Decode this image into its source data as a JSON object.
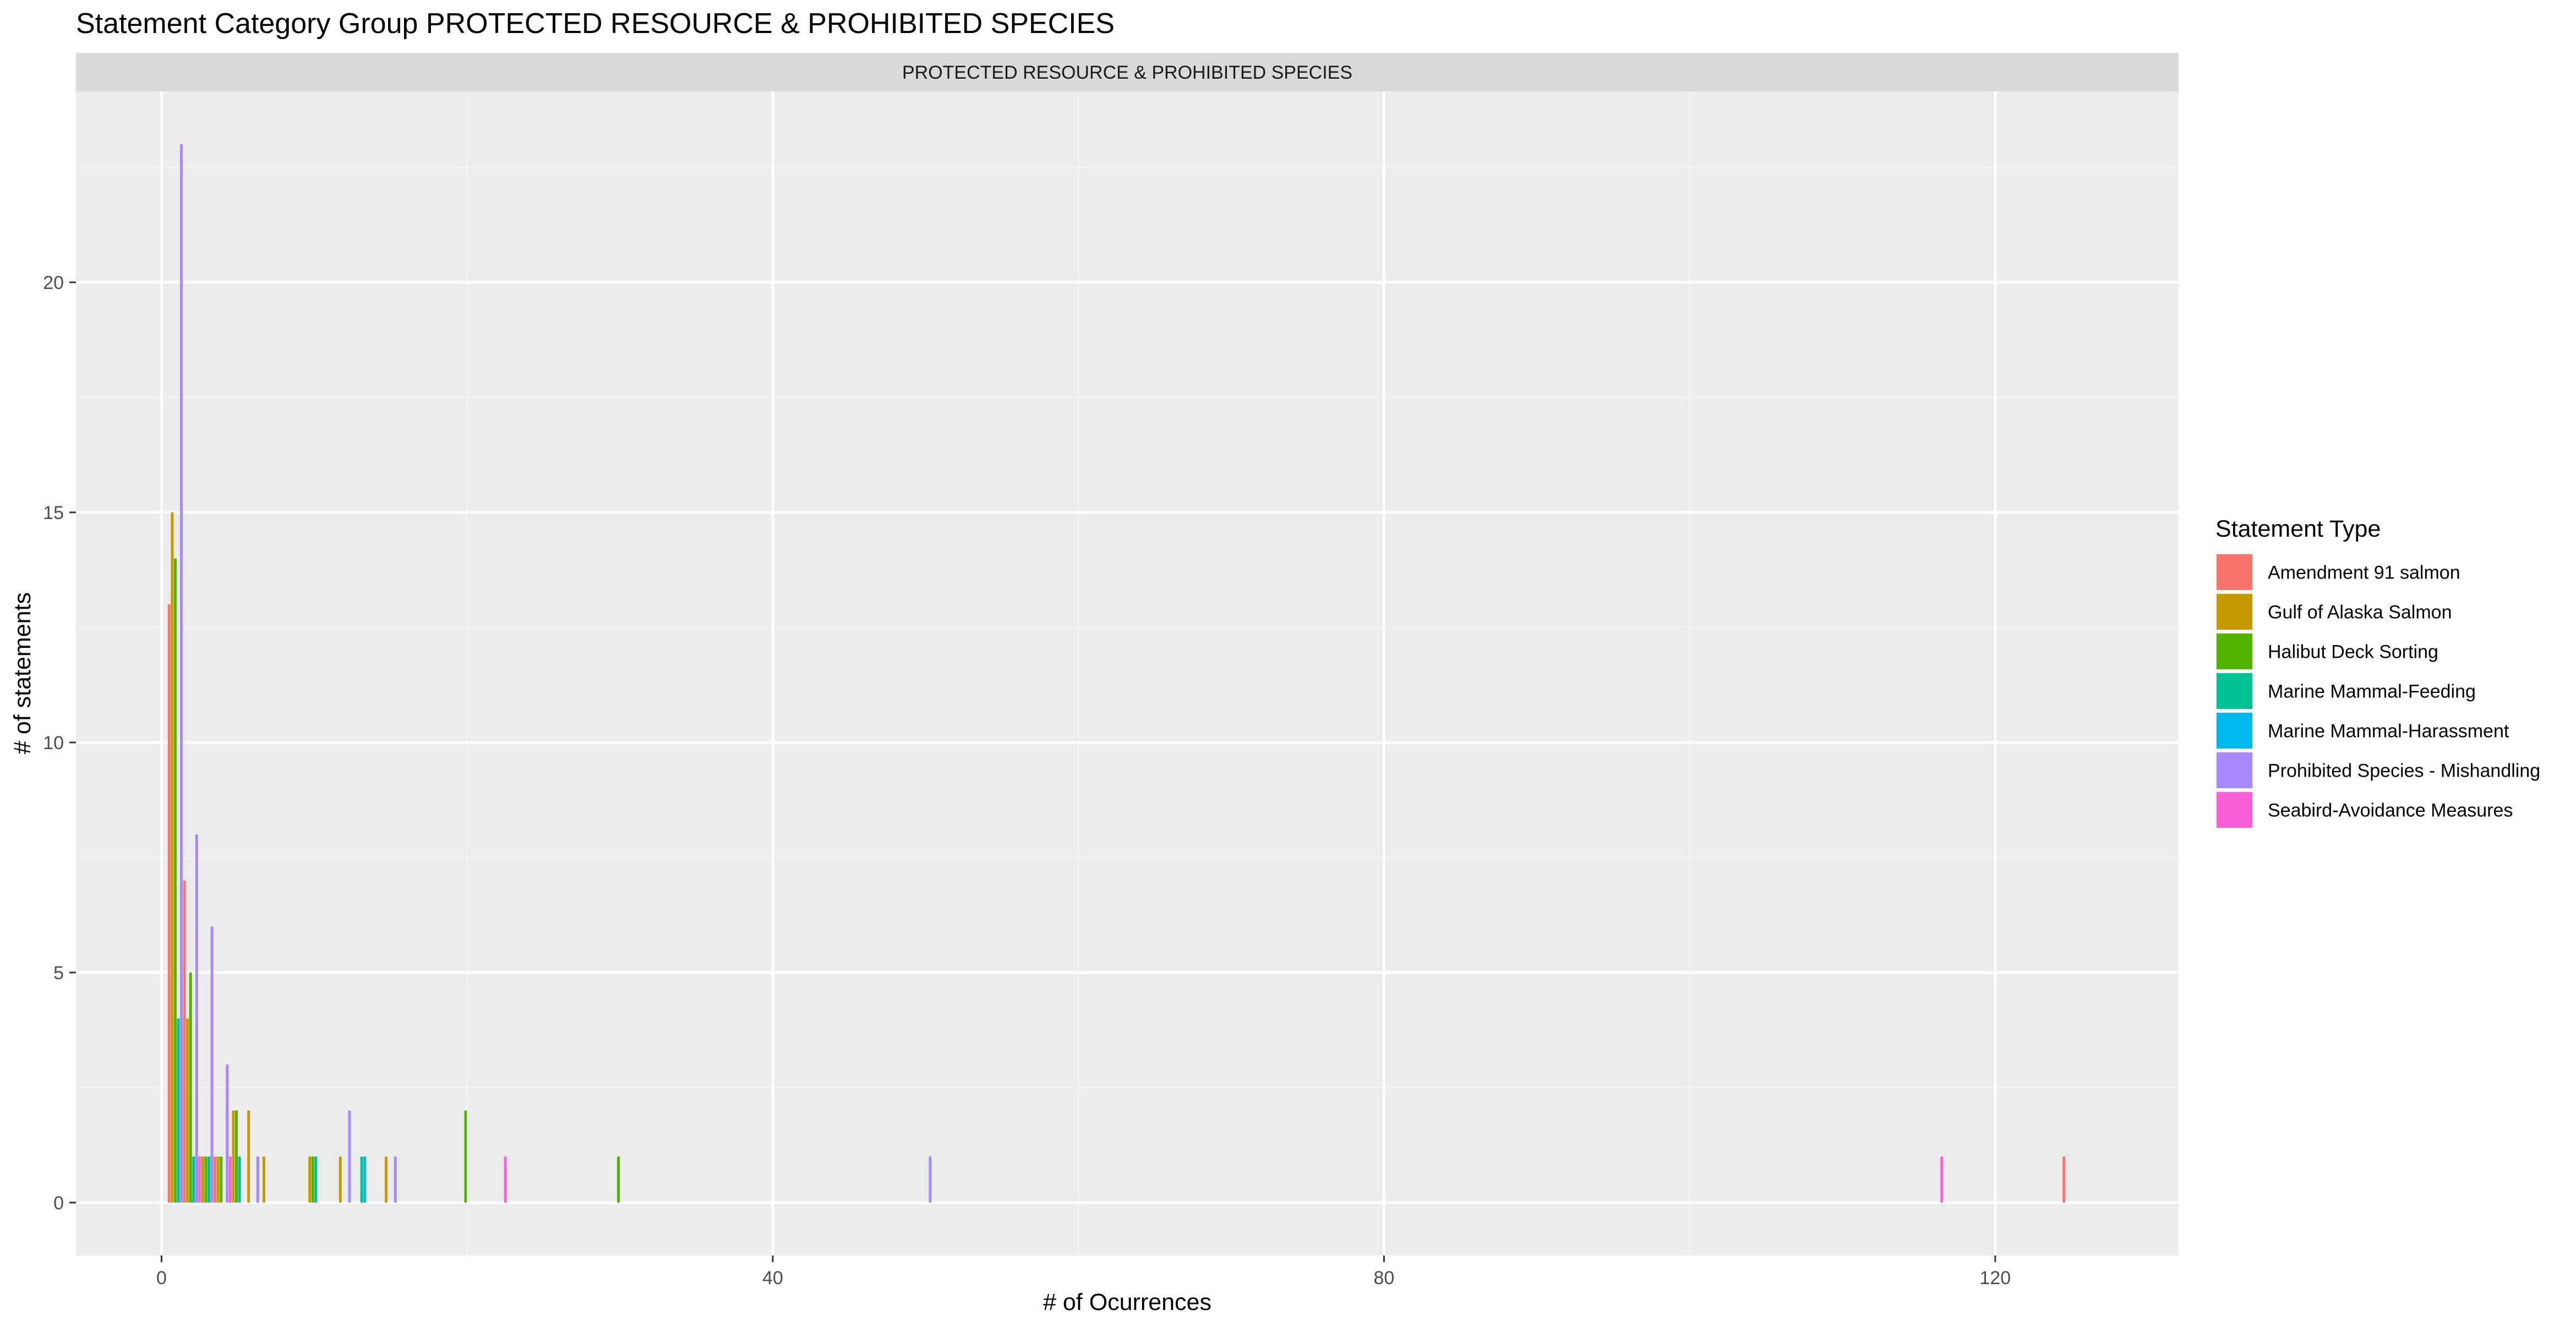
{
  "chart_data": {
    "type": "bar",
    "title": "Statement Category Group PROTECTED RESOURCE & PROHIBITED SPECIES",
    "facet_label": "PROTECTED RESOURCE & PROHIBITED SPECIES",
    "xlabel": "# of Ocurrences",
    "ylabel": "# of statements",
    "xlim": [
      -5.6,
      132
    ],
    "ylim": [
      -1.15,
      24.15
    ],
    "x_ticks": [
      0,
      40,
      80,
      120
    ],
    "x_tick_labels": [
      "0",
      "40",
      "80",
      "120"
    ],
    "y_ticks": [
      0,
      5,
      10,
      15,
      20
    ],
    "y_tick_labels": [
      "0",
      "5",
      "10",
      "15",
      "20"
    ],
    "grid": true,
    "legend": {
      "title": "Statement Type",
      "position": "right"
    },
    "series": [
      {
        "name": "Amendment 91 salmon",
        "color": "#F8766D",
        "points": [
          [
            0.5,
            13
          ],
          [
            1.5,
            7
          ],
          [
            2.5,
            1
          ],
          [
            3.5,
            1
          ],
          [
            124.5,
            1
          ]
        ]
      },
      {
        "name": "Gulf of Alaska Salmon",
        "color": "#C49A00",
        "points": [
          [
            0.7,
            15
          ],
          [
            1.7,
            4
          ],
          [
            2.7,
            1
          ],
          [
            3.7,
            1
          ],
          [
            4.7,
            2
          ],
          [
            5.7,
            2
          ],
          [
            6.7,
            1
          ],
          [
            9.7,
            1
          ],
          [
            11.7,
            1
          ],
          [
            14.7,
            1
          ]
        ]
      },
      {
        "name": "Halibut Deck Sorting",
        "color": "#53B400",
        "points": [
          [
            0.9,
            14
          ],
          [
            1.9,
            5
          ],
          [
            2.9,
            1
          ],
          [
            3.9,
            1
          ],
          [
            4.9,
            2
          ],
          [
            9.9,
            1
          ],
          [
            19.9,
            2
          ],
          [
            29.9,
            1
          ]
        ]
      },
      {
        "name": "Marine Mammal-Feeding",
        "color": "#00C094",
        "points": [
          [
            1.1,
            4
          ],
          [
            2.1,
            1
          ],
          [
            3.1,
            1
          ],
          [
            5.1,
            1
          ],
          [
            10.1,
            1
          ],
          [
            13.1,
            1
          ]
        ]
      },
      {
        "name": "Marine Mammal-Harassment",
        "color": "#00B6EB",
        "points": [
          [
            1.3,
            4
          ],
          [
            2.3,
            1
          ],
          [
            3.3,
            1
          ],
          [
            6.3,
            1
          ],
          [
            13.3,
            1
          ]
        ]
      },
      {
        "name": "Prohibited Species - Mishandling",
        "color": "#A58AFF",
        "points": [
          [
            1.3,
            23
          ],
          [
            2.3,
            8
          ],
          [
            3.3,
            6
          ],
          [
            4.3,
            3
          ],
          [
            6.3,
            1
          ],
          [
            12.3,
            2
          ],
          [
            15.3,
            1
          ],
          [
            50.3,
            1
          ]
        ]
      },
      {
        "name": "Seabird-Avoidance Measures",
        "color": "#FB61D7",
        "points": [
          [
            2.5,
            1
          ],
          [
            4.5,
            1
          ],
          [
            22.5,
            1
          ],
          [
            116.5,
            1
          ]
        ]
      }
    ]
  }
}
